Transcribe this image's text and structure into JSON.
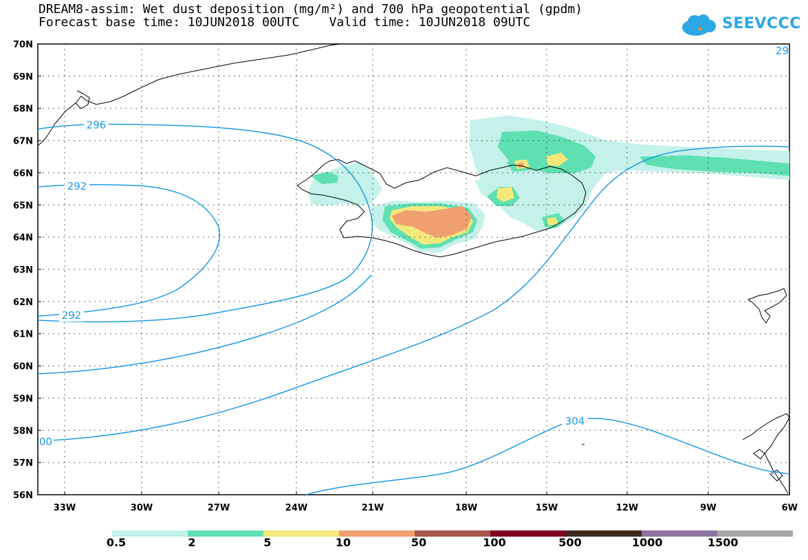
{
  "title": {
    "line1": "DREAM8-assim: Wet dust deposition (mg/m²) and 700 hPa geopotential (gpdm)",
    "line2": "Forecast base time: 10JUN2018 00UTC    Valid time: 10JUN2018 09UTC"
  },
  "logo": {
    "text": "SEEVCCC",
    "icon": "cloud-logo-icon"
  },
  "map": {
    "lat_labels": [
      "70N",
      "69N",
      "68N",
      "67N",
      "66N",
      "65N",
      "64N",
      "63N",
      "62N",
      "61N",
      "60N",
      "59N",
      "58N",
      "57N",
      "56N"
    ],
    "lon_labels": [
      "33W",
      "30W",
      "27W",
      "24W",
      "21W",
      "18W",
      "15W",
      "12W",
      "9W",
      "6W"
    ],
    "contour_labels": [
      "296",
      "292",
      "292",
      "304",
      "00",
      "29"
    ],
    "colors": {
      "contour": "#1e9ae6",
      "coast": "#000000",
      "grid": "#333333"
    }
  },
  "colorbar": {
    "labels": [
      "0.5",
      "2",
      "5",
      "10",
      "50",
      "100",
      "500",
      "1000",
      "1500"
    ],
    "colors": [
      "#c4f2ea",
      "#5fe0b2",
      "#f4e87a",
      "#f0a070",
      "#a8564a",
      "#800020",
      "#3e2b1e",
      "#8e72a0",
      "#a6a6a6"
    ]
  }
}
